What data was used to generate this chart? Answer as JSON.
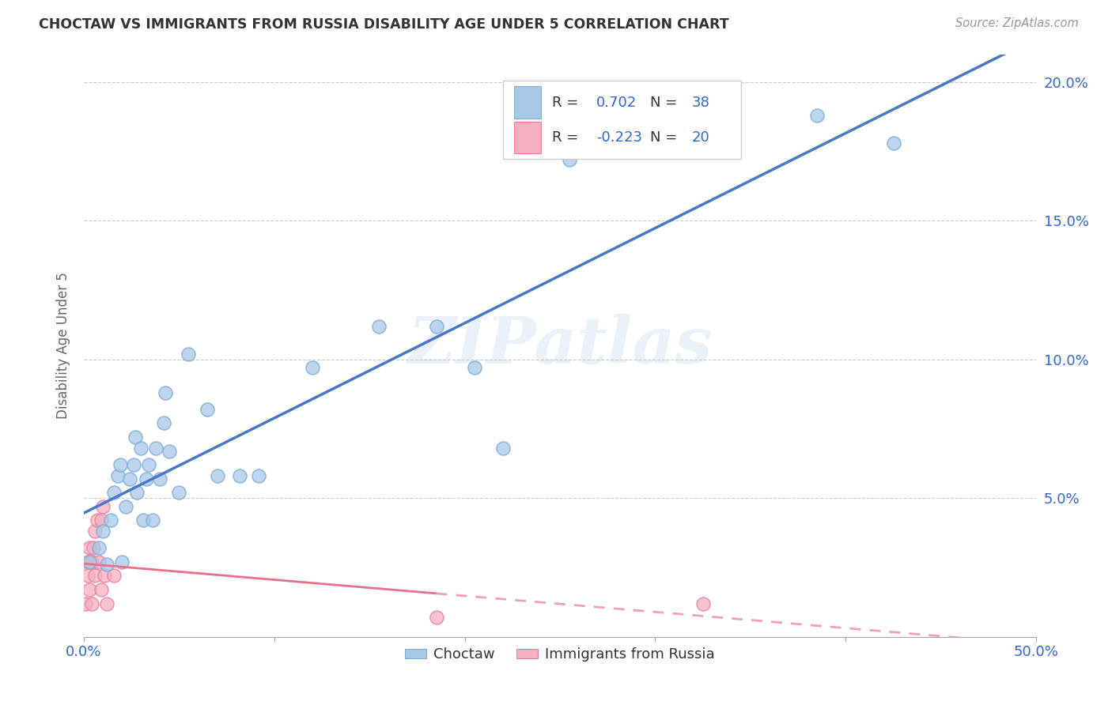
{
  "title": "CHOCTAW VS IMMIGRANTS FROM RUSSIA DISABILITY AGE UNDER 5 CORRELATION CHART",
  "source": "Source: ZipAtlas.com",
  "ylabel": "Disability Age Under 5",
  "xlim": [
    0.0,
    0.5
  ],
  "ylim": [
    0.0,
    0.21
  ],
  "xticks": [
    0.0,
    0.1,
    0.2,
    0.3,
    0.4,
    0.5
  ],
  "xticklabels": [
    "0.0%",
    "",
    "",
    "",
    "",
    "50.0%"
  ],
  "yticks": [
    0.0,
    0.05,
    0.1,
    0.15,
    0.2
  ],
  "yticklabels": [
    "",
    "5.0%",
    "10.0%",
    "15.0%",
    "20.0%"
  ],
  "choctaw_color": "#a8c8e8",
  "russia_color": "#f4afc0",
  "choctaw_edge_color": "#7aaed8",
  "russia_edge_color": "#e880a0",
  "choctaw_line_color": "#4878c8",
  "russia_line_color": "#e8708a",
  "russia_dash_color": "#f0a0b8",
  "watermark": "ZIPatlas",
  "legend_text_color": "#3366cc",
  "legend_r1_label": "R =  0.702   N = 38",
  "legend_r2_label": "R = -0.223   N = 20",
  "choctaw_x": [
    0.003,
    0.008,
    0.01,
    0.012,
    0.014,
    0.016,
    0.018,
    0.019,
    0.02,
    0.022,
    0.024,
    0.026,
    0.027,
    0.028,
    0.03,
    0.031,
    0.033,
    0.034,
    0.036,
    0.038,
    0.04,
    0.042,
    0.043,
    0.045,
    0.05,
    0.055,
    0.065,
    0.07,
    0.082,
    0.092,
    0.12,
    0.155,
    0.185,
    0.205,
    0.22,
    0.255,
    0.385,
    0.425
  ],
  "choctaw_y": [
    0.027,
    0.032,
    0.038,
    0.026,
    0.042,
    0.052,
    0.058,
    0.062,
    0.027,
    0.047,
    0.057,
    0.062,
    0.072,
    0.052,
    0.068,
    0.042,
    0.057,
    0.062,
    0.042,
    0.068,
    0.057,
    0.077,
    0.088,
    0.067,
    0.052,
    0.102,
    0.082,
    0.058,
    0.058,
    0.058,
    0.097,
    0.112,
    0.112,
    0.097,
    0.068,
    0.172,
    0.188,
    0.178
  ],
  "russia_x": [
    0.001,
    0.002,
    0.002,
    0.003,
    0.003,
    0.004,
    0.004,
    0.005,
    0.006,
    0.006,
    0.007,
    0.008,
    0.009,
    0.009,
    0.01,
    0.011,
    0.012,
    0.016,
    0.185,
    0.325
  ],
  "russia_y": [
    0.012,
    0.022,
    0.027,
    0.017,
    0.032,
    0.027,
    0.012,
    0.032,
    0.038,
    0.022,
    0.042,
    0.027,
    0.017,
    0.042,
    0.047,
    0.022,
    0.012,
    0.022,
    0.007,
    0.012
  ]
}
